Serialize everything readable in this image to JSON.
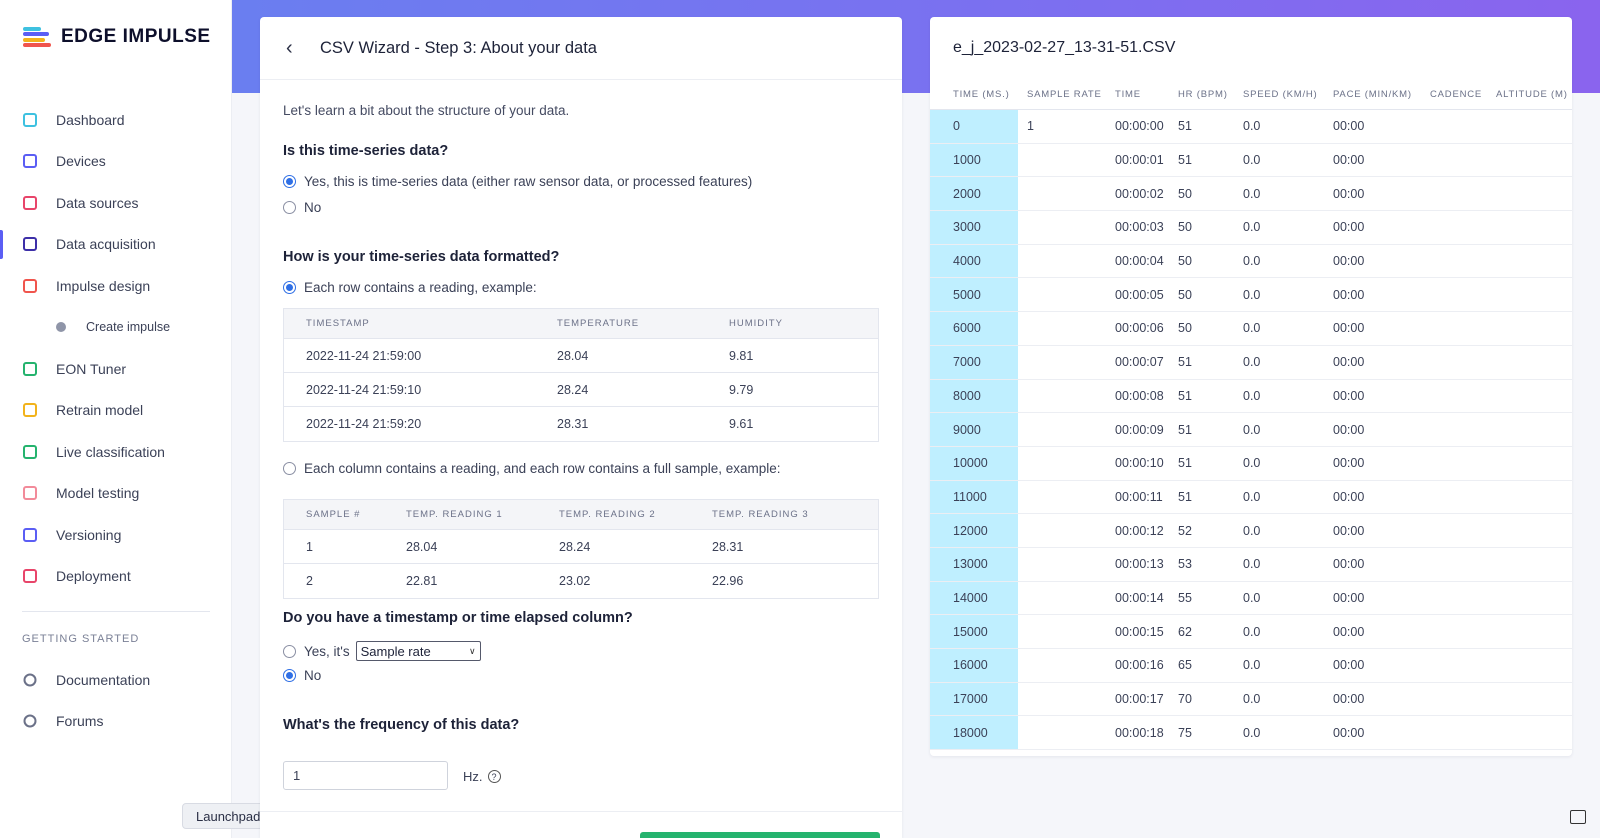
{
  "brand": {
    "name": "EDGE IMPULSE"
  },
  "sidebar": {
    "items": [
      {
        "label": "Dashboard",
        "icon": "monitor-icon",
        "color": "#3ec1e0"
      },
      {
        "label": "Devices",
        "icon": "chip-icon",
        "color": "#5b5ef4"
      },
      {
        "label": "Data sources",
        "icon": "wand-icon",
        "color": "#e8456a"
      },
      {
        "label": "Data acquisition",
        "icon": "database-icon",
        "color": "#3d2fa8"
      },
      {
        "label": "Impulse design",
        "icon": "pulse-icon",
        "color": "#f0554d"
      },
      {
        "label": "Create impulse",
        "icon": "dot-icon",
        "color": "#8f95a8"
      },
      {
        "label": "EON Tuner",
        "icon": "compass-icon",
        "color": "#25b36e"
      },
      {
        "label": "Retrain model",
        "icon": "shuffle-icon",
        "color": "#f2b31c"
      },
      {
        "label": "Live classification",
        "icon": "signal-icon",
        "color": "#25b36e"
      },
      {
        "label": "Model testing",
        "icon": "clipboard-icon",
        "color": "#f28b9a"
      },
      {
        "label": "Versioning",
        "icon": "branch-icon",
        "color": "#5b5ef4"
      },
      {
        "label": "Deployment",
        "icon": "box-icon",
        "color": "#e8456a"
      }
    ],
    "section_label": "GETTING STARTED",
    "getting_started": [
      {
        "label": "Documentation",
        "icon": "rocket-icon"
      },
      {
        "label": "Forums",
        "icon": "chat-bubbles-icon"
      }
    ],
    "launchpad": "Launchpad"
  },
  "wizard": {
    "title": "CSV Wizard - Step 3: About your data",
    "intro": "Let's learn a bit about the structure of your data.",
    "q1": "Is this time-series data?",
    "q1_yes": "Yes, this is time-series data (either raw sensor data, or processed features)",
    "q1_no": "No",
    "q2": "How is your time-series data formatted?",
    "q2_opt1": "Each row contains a reading, example:",
    "example1": {
      "headers": [
        "TIMESTAMP",
        "TEMPERATURE",
        "HUMIDITY"
      ],
      "rows": [
        [
          "2022-11-24 21:59:00",
          "28.04",
          "9.81"
        ],
        [
          "2022-11-24 21:59:10",
          "28.24",
          "9.79"
        ],
        [
          "2022-11-24 21:59:20",
          "28.31",
          "9.61"
        ]
      ]
    },
    "q2_opt2": "Each column contains a reading, and each row contains a full sample, example:",
    "example2": {
      "headers": [
        "SAMPLE #",
        "TEMP. READING 1",
        "TEMP. READING 2",
        "TEMP. READING 3"
      ],
      "rows": [
        [
          "1",
          "28.04",
          "28.24",
          "28.31"
        ],
        [
          "2",
          "22.81",
          "23.02",
          "22.96"
        ]
      ]
    },
    "q3": "Do you have a timestamp or time elapsed column?",
    "q3_yes": "Yes, it's",
    "q3_select": "Sample rate",
    "q3_no": "No",
    "q4": "What's the frequency of this data?",
    "freq_value": "1",
    "freq_unit": "Hz."
  },
  "csv": {
    "file_name": "e_j_2023-02-27_13-31-51.CSV",
    "headers": [
      "TIME (MS.)",
      "SAMPLE RATE",
      "TIME",
      "HR (BPM)",
      "SPEED (KM/H)",
      "PACE (MIN/KM)",
      "CADENCE",
      "ALTITUDE (M)"
    ],
    "rows": [
      [
        "0",
        "1",
        "00:00:00",
        "51",
        "0.0",
        "00:00"
      ],
      [
        "1000",
        "",
        "00:00:01",
        "51",
        "0.0",
        "00:00"
      ],
      [
        "2000",
        "",
        "00:00:02",
        "50",
        "0.0",
        "00:00"
      ],
      [
        "3000",
        "",
        "00:00:03",
        "50",
        "0.0",
        "00:00"
      ],
      [
        "4000",
        "",
        "00:00:04",
        "50",
        "0.0",
        "00:00"
      ],
      [
        "5000",
        "",
        "00:00:05",
        "50",
        "0.0",
        "00:00"
      ],
      [
        "6000",
        "",
        "00:00:06",
        "50",
        "0.0",
        "00:00"
      ],
      [
        "7000",
        "",
        "00:00:07",
        "51",
        "0.0",
        "00:00"
      ],
      [
        "8000",
        "",
        "00:00:08",
        "51",
        "0.0",
        "00:00"
      ],
      [
        "9000",
        "",
        "00:00:09",
        "51",
        "0.0",
        "00:00"
      ],
      [
        "10000",
        "",
        "00:00:10",
        "51",
        "0.0",
        "00:00"
      ],
      [
        "11000",
        "",
        "00:00:11",
        "51",
        "0.0",
        "00:00"
      ],
      [
        "12000",
        "",
        "00:00:12",
        "52",
        "0.0",
        "00:00"
      ],
      [
        "13000",
        "",
        "00:00:13",
        "53",
        "0.0",
        "00:00"
      ],
      [
        "14000",
        "",
        "00:00:14",
        "55",
        "0.0",
        "00:00"
      ],
      [
        "15000",
        "",
        "00:00:15",
        "62",
        "0.0",
        "00:00"
      ],
      [
        "16000",
        "",
        "00:00:16",
        "65",
        "0.0",
        "00:00"
      ],
      [
        "17000",
        "",
        "00:00:17",
        "70",
        "0.0",
        "00:00"
      ],
      [
        "18000",
        "",
        "00:00:18",
        "75",
        "0.0",
        "00:00"
      ]
    ]
  }
}
